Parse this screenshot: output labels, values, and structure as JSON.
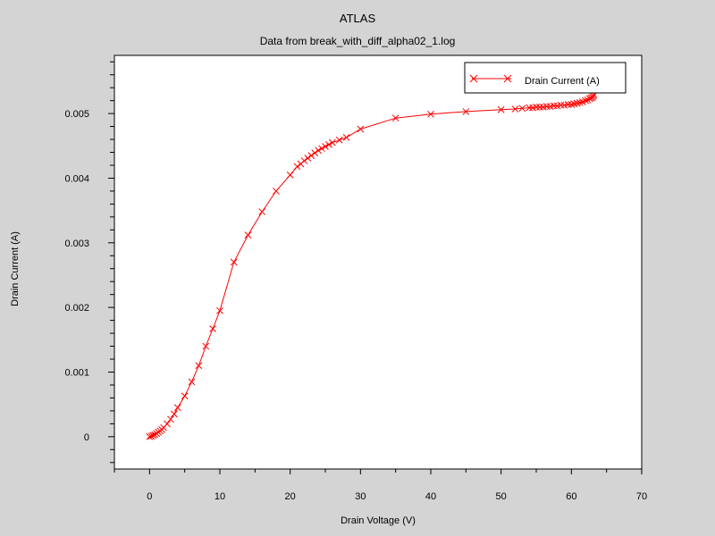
{
  "chart_data": {
    "type": "line",
    "title": "ATLAS",
    "subtitle": "Data from break_with_diff_alpha02_1.log",
    "xlabel": "Drain Voltage (V)",
    "ylabel": "Drain Current (A)",
    "xlim": [
      -5,
      70
    ],
    "ylim": [
      -0.0005,
      0.0059
    ],
    "x_ticks": [
      "0",
      "10",
      "20",
      "30",
      "40",
      "50",
      "60",
      "70"
    ],
    "y_ticks": [
      "0",
      "0.001",
      "0.002",
      "0.003",
      "0.004",
      "0.005"
    ],
    "legend_position": "top-right",
    "grid": false,
    "series": [
      {
        "name": "Drain Current (A)",
        "color": "#ff0000",
        "marker": "x",
        "x": [
          0,
          0.25,
          0.5,
          0.75,
          1,
          1.25,
          1.5,
          1.75,
          2,
          2.5,
          3,
          3.5,
          4,
          5,
          6,
          7,
          8,
          9,
          10,
          12,
          14,
          16,
          18,
          20,
          21,
          21.5,
          22,
          22.5,
          23,
          23.5,
          24,
          24.5,
          25,
          25.5,
          26,
          27,
          28,
          30,
          35,
          40,
          45,
          50,
          52,
          53,
          54,
          54.5,
          55,
          55.5,
          56,
          56.5,
          57,
          57.5,
          58,
          58.5,
          59,
          59.5,
          60,
          60.4,
          60.8,
          61.2,
          61.6,
          62,
          62.3,
          62.6,
          62.8,
          63,
          63.1,
          63.2
        ],
        "y": [
          0.0,
          1e-05,
          2e-05,
          3e-05,
          5e-05,
          7e-05,
          9e-05,
          0.00011,
          0.00014,
          0.0002,
          0.00027,
          0.00035,
          0.00045,
          0.00063,
          0.00085,
          0.0011,
          0.0014,
          0.00167,
          0.00195,
          0.0027,
          0.00312,
          0.00348,
          0.0038,
          0.00405,
          0.00418,
          0.00422,
          0.00427,
          0.00431,
          0.00435,
          0.00439,
          0.00443,
          0.00446,
          0.00449,
          0.00452,
          0.00455,
          0.00459,
          0.00463,
          0.00476,
          0.00493,
          0.00499,
          0.00503,
          0.00506,
          0.00507,
          0.00508,
          0.00509,
          0.00509,
          0.0051,
          0.0051,
          0.0051,
          0.00511,
          0.00511,
          0.00512,
          0.00512,
          0.00513,
          0.00513,
          0.00514,
          0.00514,
          0.00515,
          0.00516,
          0.00517,
          0.00518,
          0.0052,
          0.00521,
          0.00523,
          0.00524,
          0.00525,
          0.00527,
          0.00529
        ]
      }
    ]
  }
}
